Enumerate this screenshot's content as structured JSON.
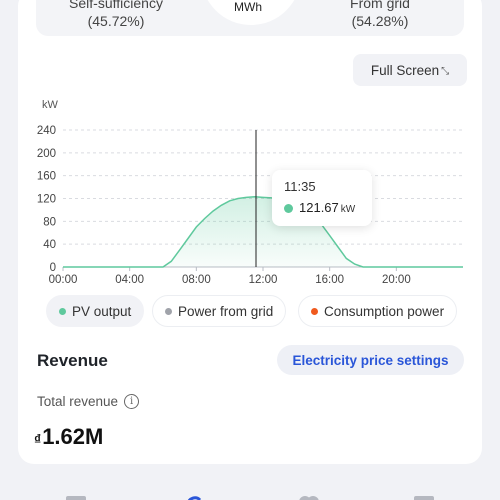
{
  "summary": {
    "self_sufficiency_label": "Self-sufficiency",
    "self_sufficiency_value": "(45.72%)",
    "from_grid_label": "From grid",
    "from_grid_value": "(54.28%)",
    "gauge_unit": "MWh",
    "gauge_self_fraction": 0.4572
  },
  "toolbar": {
    "fullscreen_label": "Full Screen",
    "fullscreen_icon": "expand-arrows-icon"
  },
  "chart_data": {
    "type": "area",
    "ylabel": "kW",
    "yticks": [
      0,
      40,
      80,
      120,
      160,
      200,
      240
    ],
    "xticks": [
      "00:00",
      "04:00",
      "08:00",
      "12:00",
      "16:00",
      "20:00"
    ],
    "ylim": [
      0,
      240
    ],
    "xlim": [
      0,
      24
    ],
    "grid": true,
    "series": [
      {
        "name": "PV output",
        "color": "#5fc99d",
        "x": [
          0,
          6,
          6.5,
          7,
          7.5,
          8,
          8.5,
          9,
          9.5,
          10,
          10.5,
          11,
          11.5,
          12,
          12.5,
          13,
          13.5,
          14,
          14.5,
          15,
          15.5,
          16,
          16.5,
          17,
          17.5,
          18,
          24
        ],
        "y": [
          0,
          0,
          10,
          30,
          50,
          70,
          85,
          98,
          108,
          116,
          120,
          122,
          123,
          122,
          121,
          119,
          116,
          110,
          100,
          90,
          75,
          55,
          35,
          15,
          5,
          0,
          0
        ]
      }
    ],
    "cursor": {
      "x": 11.58,
      "time": "11:35",
      "value": "121.67",
      "unit": "kW"
    }
  },
  "legend": [
    {
      "label": "PV output",
      "color": "#5fc99d",
      "active": true
    },
    {
      "label": "Power from grid",
      "color": "#a0a3aa",
      "active": false
    },
    {
      "label": "Consumption power",
      "color": "#f05a1e",
      "active": false
    }
  ],
  "revenue": {
    "title": "Revenue",
    "price_settings_label": "Electricity price settings",
    "total_label": "Total revenue",
    "currency": "₫",
    "total_value": "1.62M"
  },
  "colors": {
    "accent": "#2a56d8",
    "pv": "#5fc99d",
    "grid_gauge": "#f7b52c",
    "self_gauge": "#f05a1e"
  }
}
